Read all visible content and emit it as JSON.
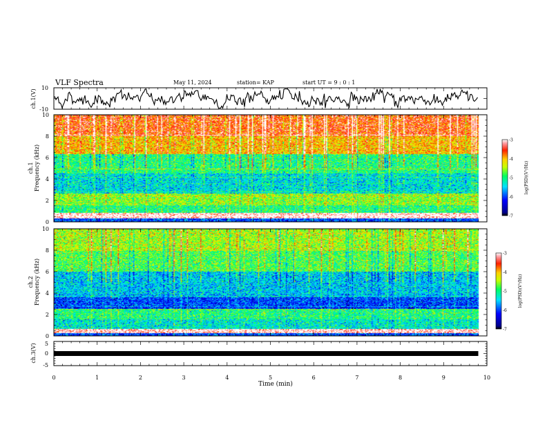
{
  "header": {
    "title": "VLF Spectra",
    "date": "May 11, 2024",
    "station": "station= KAP",
    "start": "start  UT =  9 : 0  : 1"
  },
  "chart_data": [
    {
      "type": "line",
      "panel": "waveform-ch1",
      "ylabel": "ch.1(V)",
      "ylim": [
        -10,
        10
      ],
      "yticklabels": [
        "10",
        "-10"
      ],
      "xlim": [
        0,
        10
      ],
      "x_end": 9.8,
      "y_range_observed": [
        -9,
        9
      ],
      "color": "#000000"
    },
    {
      "type": "heatmap",
      "panel": "spectrogram-ch1",
      "ylabel": "ch.1\nFrequency (kHz)",
      "ylim": [
        0,
        10
      ],
      "yticklabels": [
        "0",
        "2",
        "4",
        "6",
        "8",
        "10"
      ],
      "xlim": [
        0,
        10
      ],
      "x_end": 9.8,
      "colorbar": {
        "label": "log(PSD)(V²/Hz)",
        "range": [
          -7,
          -3
        ],
        "ticklabels": [
          "-3",
          "-4",
          "-5",
          "-6",
          "-7"
        ]
      },
      "bands": [
        {
          "f": [
            0.0,
            0.3
          ],
          "level": -6.0
        },
        {
          "f": [
            0.3,
            0.8
          ],
          "level": -3.0
        },
        {
          "f": [
            0.8,
            1.5
          ],
          "level": -5.0
        },
        {
          "f": [
            1.5,
            2.6
          ],
          "level": -4.6
        },
        {
          "f": [
            2.6,
            4.5
          ],
          "level": -5.4
        },
        {
          "f": [
            4.5,
            6.3
          ],
          "level": -5.0
        },
        {
          "f": [
            6.3,
            8.0
          ],
          "level": -4.0
        },
        {
          "f": [
            8.0,
            10.0
          ],
          "level": -3.6
        }
      ]
    },
    {
      "type": "heatmap",
      "panel": "spectrogram-ch2",
      "ylabel": "ch.2\nFrequency (kHz)",
      "ylim": [
        0,
        10
      ],
      "yticklabels": [
        "0",
        "2",
        "4",
        "6",
        "8",
        "10"
      ],
      "xlim": [
        0,
        10
      ],
      "x_end": 9.8,
      "colorbar": {
        "label": "log(PSD)(V²/Hz)",
        "range": [
          -7,
          -3
        ],
        "ticklabels": [
          "-3",
          "-4",
          "-5",
          "-6",
          "-7"
        ]
      },
      "bands": [
        {
          "f": [
            0.0,
            0.2
          ],
          "level": -6.0
        },
        {
          "f": [
            0.2,
            0.6
          ],
          "level": -3.0
        },
        {
          "f": [
            0.6,
            1.5
          ],
          "level": -5.3
        },
        {
          "f": [
            1.5,
            2.5
          ],
          "level": -5.0
        },
        {
          "f": [
            2.5,
            3.6
          ],
          "level": -6.0
        },
        {
          "f": [
            3.6,
            6.0
          ],
          "level": -5.5
        },
        {
          "f": [
            6.0,
            8.0
          ],
          "level": -4.8
        },
        {
          "f": [
            8.0,
            10.0
          ],
          "level": -4.5
        }
      ]
    },
    {
      "type": "line",
      "panel": "waveform-ch3",
      "ylabel": "ch.3(V)",
      "ylim": [
        -5,
        5
      ],
      "yticklabels": [
        "5",
        "0",
        "-5"
      ],
      "xlim": [
        0,
        10
      ],
      "x_end": 9.8,
      "y_value": 0,
      "color": "#000000"
    }
  ],
  "x_axis": {
    "label": "Time  (min)",
    "ticklabels": [
      "0",
      "1",
      "2",
      "3",
      "4",
      "5",
      "6",
      "7",
      "8",
      "9",
      "10"
    ]
  }
}
